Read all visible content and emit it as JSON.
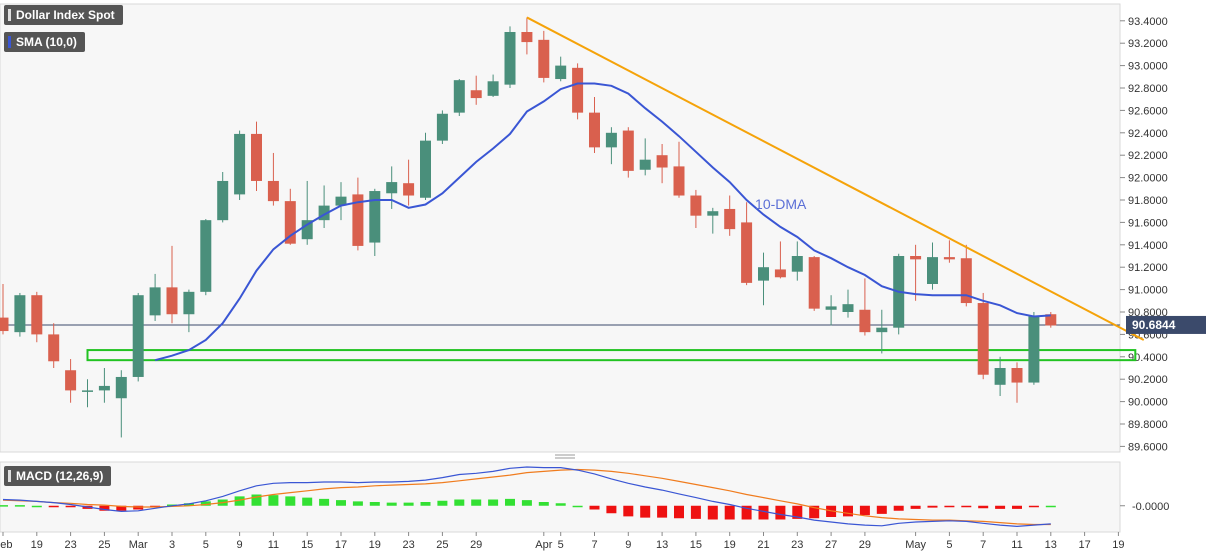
{
  "chart_data": {
    "type": "candlestick",
    "title": "Dollar Index Spot",
    "indicator_labels": {
      "sma": "SMA (10,0)",
      "macd": "MACD (12,26,9)"
    },
    "price_axis": {
      "ylim": [
        89.55,
        93.55
      ],
      "ticks": [
        "93.4000",
        "93.2000",
        "93.0000",
        "92.8000",
        "92.6000",
        "92.4000",
        "92.2000",
        "92.0000",
        "91.8000",
        "91.6000",
        "91.4000",
        "91.2000",
        "91.0000",
        "90.8000",
        "90.6000",
        "90.4000",
        "90.2000",
        "90.0000",
        "89.8000",
        "89.6000"
      ],
      "last_price": 90.6844,
      "last_price_label": "90.6844"
    },
    "macd_axis": {
      "tick": "-0.0000"
    },
    "x_tick_labels": [
      {
        "i": 0,
        "label": "Feb"
      },
      {
        "i": 2,
        "label": "19"
      },
      {
        "i": 4,
        "label": "23"
      },
      {
        "i": 6,
        "label": "25"
      },
      {
        "i": 8,
        "label": "Mar"
      },
      {
        "i": 10,
        "label": "3"
      },
      {
        "i": 12,
        "label": "5"
      },
      {
        "i": 14,
        "label": "9"
      },
      {
        "i": 16,
        "label": "11"
      },
      {
        "i": 18,
        "label": "15"
      },
      {
        "i": 20,
        "label": "17"
      },
      {
        "i": 22,
        "label": "19"
      },
      {
        "i": 24,
        "label": "23"
      },
      {
        "i": 26,
        "label": "25"
      },
      {
        "i": 28,
        "label": "29"
      },
      {
        "i": 32,
        "label": "Apr"
      },
      {
        "i": 33,
        "label": "5"
      },
      {
        "i": 35,
        "label": "7"
      },
      {
        "i": 37,
        "label": "9"
      },
      {
        "i": 39,
        "label": "13"
      },
      {
        "i": 41,
        "label": "15"
      },
      {
        "i": 43,
        "label": "19"
      },
      {
        "i": 45,
        "label": "21"
      },
      {
        "i": 47,
        "label": "23"
      },
      {
        "i": 49,
        "label": "27"
      },
      {
        "i": 51,
        "label": "29"
      },
      {
        "i": 54,
        "label": "May"
      },
      {
        "i": 56,
        "label": "5"
      },
      {
        "i": 58,
        "label": "7"
      },
      {
        "i": 60,
        "label": "11"
      },
      {
        "i": 62,
        "label": "13"
      },
      {
        "i": 64,
        "label": "17"
      },
      {
        "i": 66,
        "label": "19"
      }
    ],
    "candles": [
      {
        "o": 90.75,
        "h": 91.05,
        "l": 90.6,
        "c": 90.63
      },
      {
        "o": 90.62,
        "h": 90.97,
        "l": 90.58,
        "c": 90.95
      },
      {
        "o": 90.95,
        "h": 90.98,
        "l": 90.53,
        "c": 90.6
      },
      {
        "o": 90.6,
        "h": 90.7,
        "l": 90.3,
        "c": 90.36
      },
      {
        "o": 90.28,
        "h": 90.38,
        "l": 89.99,
        "c": 90.1
      },
      {
        "o": 90.1,
        "h": 90.2,
        "l": 89.95,
        "c": 90.1
      },
      {
        "o": 90.1,
        "h": 90.3,
        "l": 89.99,
        "c": 90.14
      },
      {
        "o": 90.03,
        "h": 90.28,
        "l": 89.68,
        "c": 90.22
      },
      {
        "o": 90.22,
        "h": 90.97,
        "l": 90.18,
        "c": 90.95
      },
      {
        "o": 90.77,
        "h": 91.14,
        "l": 90.72,
        "c": 91.02
      },
      {
        "o": 91.02,
        "h": 91.39,
        "l": 90.7,
        "c": 90.78
      },
      {
        "o": 90.78,
        "h": 91.0,
        "l": 90.62,
        "c": 90.98
      },
      {
        "o": 90.98,
        "h": 91.63,
        "l": 90.95,
        "c": 91.62
      },
      {
        "o": 91.62,
        "h": 92.05,
        "l": 91.6,
        "c": 91.97
      },
      {
        "o": 91.85,
        "h": 92.42,
        "l": 91.8,
        "c": 92.39
      },
      {
        "o": 92.39,
        "h": 92.5,
        "l": 91.88,
        "c": 91.97
      },
      {
        "o": 91.97,
        "h": 92.22,
        "l": 91.75,
        "c": 91.79
      },
      {
        "o": 91.79,
        "h": 91.9,
        "l": 91.4,
        "c": 91.41
      },
      {
        "o": 91.45,
        "h": 91.97,
        "l": 91.4,
        "c": 91.62
      },
      {
        "o": 91.62,
        "h": 91.93,
        "l": 91.55,
        "c": 91.75
      },
      {
        "o": 91.75,
        "h": 91.96,
        "l": 91.62,
        "c": 91.83
      },
      {
        "o": 91.85,
        "h": 92.0,
        "l": 91.35,
        "c": 91.39
      },
      {
        "o": 91.42,
        "h": 91.9,
        "l": 91.3,
        "c": 91.88
      },
      {
        "o": 91.86,
        "h": 92.1,
        "l": 91.72,
        "c": 91.96
      },
      {
        "o": 91.95,
        "h": 92.16,
        "l": 91.75,
        "c": 91.84
      },
      {
        "o": 91.82,
        "h": 92.4,
        "l": 91.8,
        "c": 92.33
      },
      {
        "o": 92.33,
        "h": 92.6,
        "l": 92.3,
        "c": 92.57
      },
      {
        "o": 92.58,
        "h": 92.88,
        "l": 92.55,
        "c": 92.87
      },
      {
        "o": 92.78,
        "h": 92.91,
        "l": 92.65,
        "c": 92.71
      },
      {
        "o": 92.73,
        "h": 92.92,
        "l": 92.72,
        "c": 92.86
      },
      {
        "o": 92.83,
        "h": 93.35,
        "l": 92.8,
        "c": 93.3
      },
      {
        "o": 93.3,
        "h": 93.43,
        "l": 93.1,
        "c": 93.21
      },
      {
        "o": 93.23,
        "h": 93.31,
        "l": 92.85,
        "c": 92.89
      },
      {
        "o": 92.88,
        "h": 93.08,
        "l": 92.86,
        "c": 93.0
      },
      {
        "o": 92.98,
        "h": 93.02,
        "l": 92.52,
        "c": 92.58
      },
      {
        "o": 92.58,
        "h": 92.72,
        "l": 92.22,
        "c": 92.27
      },
      {
        "o": 92.27,
        "h": 92.45,
        "l": 92.12,
        "c": 92.4
      },
      {
        "o": 92.42,
        "h": 92.45,
        "l": 92.0,
        "c": 92.06
      },
      {
        "o": 92.07,
        "h": 92.35,
        "l": 92.02,
        "c": 92.16
      },
      {
        "o": 92.2,
        "h": 92.3,
        "l": 91.95,
        "c": 92.09
      },
      {
        "o": 92.1,
        "h": 92.32,
        "l": 91.82,
        "c": 91.84
      },
      {
        "o": 91.84,
        "h": 91.89,
        "l": 91.55,
        "c": 91.66
      },
      {
        "o": 91.66,
        "h": 91.73,
        "l": 91.5,
        "c": 91.7
      },
      {
        "o": 91.72,
        "h": 91.84,
        "l": 91.48,
        "c": 91.54
      },
      {
        "o": 91.6,
        "h": 91.78,
        "l": 91.04,
        "c": 91.06
      },
      {
        "o": 91.08,
        "h": 91.33,
        "l": 90.86,
        "c": 91.2
      },
      {
        "o": 91.18,
        "h": 91.43,
        "l": 91.1,
        "c": 91.11
      },
      {
        "o": 91.16,
        "h": 91.43,
        "l": 91.08,
        "c": 91.3
      },
      {
        "o": 91.29,
        "h": 91.3,
        "l": 90.81,
        "c": 90.83
      },
      {
        "o": 90.82,
        "h": 90.95,
        "l": 90.68,
        "c": 90.85
      },
      {
        "o": 90.8,
        "h": 91.0,
        "l": 90.75,
        "c": 90.87
      },
      {
        "o": 90.82,
        "h": 91.1,
        "l": 90.59,
        "c": 90.62
      },
      {
        "o": 90.62,
        "h": 90.82,
        "l": 90.43,
        "c": 90.66
      },
      {
        "o": 90.66,
        "h": 91.32,
        "l": 90.6,
        "c": 91.3
      },
      {
        "o": 91.3,
        "h": 91.4,
        "l": 90.9,
        "c": 91.27
      },
      {
        "o": 91.05,
        "h": 91.42,
        "l": 91.0,
        "c": 91.29
      },
      {
        "o": 91.29,
        "h": 91.44,
        "l": 91.24,
        "c": 91.27
      },
      {
        "o": 91.28,
        "h": 91.4,
        "l": 90.85,
        "c": 90.88
      },
      {
        "o": 90.88,
        "h": 90.97,
        "l": 90.2,
        "c": 90.24
      },
      {
        "o": 90.15,
        "h": 90.4,
        "l": 90.05,
        "c": 90.3
      },
      {
        "o": 90.3,
        "h": 90.35,
        "l": 89.99,
        "c": 90.17
      },
      {
        "o": 90.17,
        "h": 90.8,
        "l": 90.15,
        "c": 90.76
      },
      {
        "o": 90.78,
        "h": 90.8,
        "l": 90.66,
        "c": 90.68
      }
    ],
    "sma_values": [
      null,
      null,
      null,
      null,
      null,
      null,
      null,
      null,
      null,
      90.37,
      90.41,
      90.46,
      90.55,
      90.7,
      90.92,
      91.17,
      91.36,
      91.48,
      91.58,
      91.67,
      91.75,
      91.78,
      91.8,
      91.8,
      91.73,
      91.76,
      91.86,
      92.0,
      92.14,
      92.26,
      92.39,
      92.59,
      92.68,
      92.79,
      92.84,
      92.84,
      92.82,
      92.75,
      92.62,
      92.5,
      92.37,
      92.23,
      92.09,
      91.96,
      91.8,
      91.67,
      91.56,
      91.47,
      91.35,
      91.28,
      91.2,
      91.13,
      91.03,
      90.98,
      90.96,
      90.95,
      90.95,
      90.95,
      90.9,
      90.86,
      90.79,
      90.76,
      90.77
    ],
    "sma_label": "10-DMA",
    "macd_line": [
      0.1,
      0.09,
      0.07,
      0.05,
      0.02,
      -0.02,
      -0.06,
      -0.09,
      -0.08,
      -0.04,
      0.0,
      0.03,
      0.08,
      0.15,
      0.24,
      0.32,
      0.36,
      0.37,
      0.37,
      0.38,
      0.38,
      0.37,
      0.38,
      0.38,
      0.39,
      0.41,
      0.45,
      0.5,
      0.52,
      0.55,
      0.6,
      0.62,
      0.61,
      0.61,
      0.57,
      0.51,
      0.43,
      0.36,
      0.3,
      0.25,
      0.19,
      0.13,
      0.07,
      0.02,
      -0.04,
      -0.09,
      -0.14,
      -0.18,
      -0.23,
      -0.26,
      -0.29,
      -0.31,
      -0.32,
      -0.28,
      -0.26,
      -0.25,
      -0.24,
      -0.25,
      -0.28,
      -0.31,
      -0.33,
      -0.31,
      -0.29
    ],
    "macd_signal": [
      0.09,
      0.08,
      0.07,
      0.05,
      0.04,
      0.02,
      0.01,
      -0.01,
      -0.02,
      -0.02,
      -0.01,
      0.0,
      0.02,
      0.05,
      0.09,
      0.14,
      0.18,
      0.21,
      0.24,
      0.27,
      0.29,
      0.3,
      0.32,
      0.33,
      0.34,
      0.35,
      0.37,
      0.4,
      0.43,
      0.46,
      0.49,
      0.53,
      0.55,
      0.57,
      0.58,
      0.57,
      0.55,
      0.52,
      0.48,
      0.44,
      0.39,
      0.34,
      0.29,
      0.24,
      0.18,
      0.13,
      0.08,
      0.03,
      -0.03,
      -0.08,
      -0.12,
      -0.16,
      -0.19,
      -0.21,
      -0.22,
      -0.23,
      -0.23,
      -0.24,
      -0.25,
      -0.27,
      -0.29,
      -0.3,
      -0.3
    ],
    "macd_histogram": [
      0.01,
      0.01,
      0.0,
      -0.01,
      -0.02,
      -0.05,
      -0.08,
      -0.08,
      -0.06,
      -0.02,
      0.02,
      0.04,
      0.07,
      0.1,
      0.15,
      0.18,
      0.17,
      0.15,
      0.13,
      0.11,
      0.09,
      0.07,
      0.06,
      0.05,
      0.05,
      0.06,
      0.08,
      0.1,
      0.1,
      0.1,
      0.11,
      0.09,
      0.06,
      0.04,
      0.0,
      -0.06,
      -0.12,
      -0.17,
      -0.19,
      -0.19,
      -0.2,
      -0.21,
      -0.22,
      -0.22,
      -0.22,
      -0.22,
      -0.22,
      -0.21,
      -0.2,
      -0.18,
      -0.17,
      -0.15,
      -0.13,
      -0.08,
      -0.05,
      -0.03,
      -0.02,
      -0.02,
      -0.04,
      -0.05,
      -0.05,
      -0.02,
      0.0
    ],
    "macd_ylim": [
      -0.42,
      0.7
    ],
    "resistance_line": {
      "from": {
        "i": 31,
        "price": 93.43
      },
      "to": {
        "i": 67.5,
        "price": 90.55
      }
    },
    "support_zone": {
      "from_i": 5,
      "to_i": 67,
      "low": 90.37,
      "high": 90.46
    },
    "colors": {
      "bull": "#4a8f7b",
      "bear": "#d9604e",
      "sma": "#3a56d4",
      "trendline": "#f5a30a",
      "zone": "#22c322",
      "macd_line": "#3a56d4",
      "macd_signal": "#f07c1e",
      "hist_pos": "#33e033",
      "hist_neg": "#ee1111",
      "axis_text": "#333333",
      "plot_bg": "#f7f7f7"
    }
  }
}
